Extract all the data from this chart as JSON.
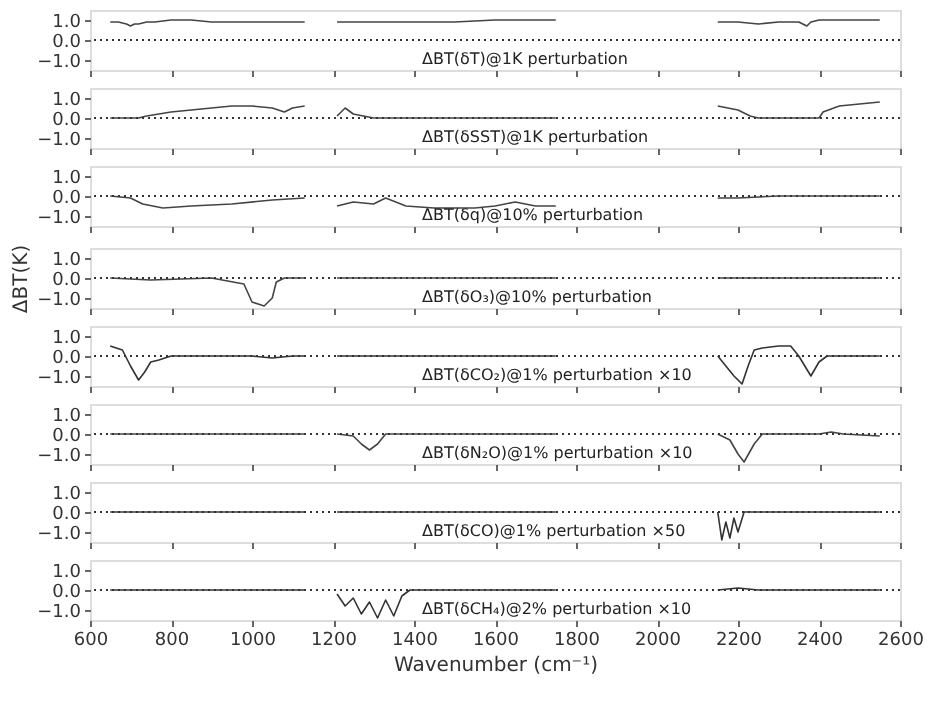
{
  "chart_data": [
    {
      "type": "line",
      "annotations": [
        "ΔBT(δT)@1K perturbation"
      ],
      "series": [
        {
          "color": "#444444",
          "x": [
            650,
            670,
            690,
            700,
            710,
            720,
            740,
            760,
            800,
            850,
            900,
            950,
            1000,
            1050,
            1100,
            1130
          ],
          "values": [
            0.9,
            0.9,
            0.8,
            0.7,
            0.8,
            0.8,
            0.9,
            0.9,
            1.0,
            1.0,
            0.9,
            0.9,
            0.9,
            0.9,
            0.9,
            0.9
          ]
        },
        {
          "color": "#444444",
          "x": [
            1210,
            1250,
            1300,
            1400,
            1500,
            1600,
            1700,
            1750
          ],
          "values": [
            0.9,
            0.9,
            0.9,
            0.9,
            0.9,
            1.0,
            1.0,
            1.0
          ]
        },
        {
          "color": "#444444",
          "x": [
            2150,
            2200,
            2250,
            2300,
            2330,
            2350,
            2370,
            2380,
            2400,
            2450,
            2500,
            2550
          ],
          "values": [
            0.9,
            0.9,
            0.8,
            0.9,
            0.9,
            0.9,
            0.7,
            0.9,
            1.0,
            1.0,
            1.0,
            1.0
          ]
        }
      ],
      "xlim": [
        600,
        2600
      ],
      "xticks": [
        {
          "value": 600,
          "label": null
        },
        {
          "value": 800,
          "label": null
        },
        {
          "value": 1000,
          "label": null
        },
        {
          "value": 1200,
          "label": null
        },
        {
          "value": 1400,
          "label": null
        },
        {
          "value": 1600,
          "label": null
        },
        {
          "value": 1800,
          "label": null
        },
        {
          "value": 2000,
          "label": null
        },
        {
          "value": 2200,
          "label": null
        },
        {
          "value": 2400,
          "label": null
        },
        {
          "value": 2600,
          "label": null
        }
      ],
      "ylim": [
        -1.5,
        1.5
      ],
      "yticks": [
        {
          "value": -1,
          "label": "−1.0"
        },
        {
          "value": 0,
          "label": "0.0"
        },
        {
          "value": 1,
          "label": "1.0"
        }
      ],
      "ref_lines": [
        {
          "axis": "y",
          "value": 0,
          "line_style": "dotted"
        }
      ],
      "tick_labels": "y"
    },
    {
      "type": "line",
      "annotations": [
        "ΔBT(δSST)@1K perturbation"
      ],
      "series": [
        {
          "color": "#444444",
          "x": [
            650,
            700,
            720,
            740,
            800,
            850,
            900,
            950,
            1000,
            1050,
            1080,
            1100,
            1130
          ],
          "values": [
            0,
            0,
            0,
            0.1,
            0.3,
            0.4,
            0.5,
            0.6,
            0.6,
            0.5,
            0.3,
            0.5,
            0.6
          ]
        },
        {
          "color": "#444444",
          "x": [
            1210,
            1230,
            1250,
            1300,
            1750
          ],
          "values": [
            0.1,
            0.5,
            0.2,
            0,
            0
          ]
        },
        {
          "color": "#444444",
          "x": [
            2150,
            2200,
            2230,
            2250,
            2400,
            2410,
            2450,
            2500,
            2550
          ],
          "values": [
            0.6,
            0.4,
            0.1,
            0,
            0,
            0.3,
            0.6,
            0.7,
            0.8
          ]
        }
      ],
      "xlim": [
        600,
        2600
      ],
      "xticks": [
        {
          "value": 600,
          "label": null
        },
        {
          "value": 800,
          "label": null
        },
        {
          "value": 1000,
          "label": null
        },
        {
          "value": 1200,
          "label": null
        },
        {
          "value": 1400,
          "label": null
        },
        {
          "value": 1600,
          "label": null
        },
        {
          "value": 1800,
          "label": null
        },
        {
          "value": 2000,
          "label": null
        },
        {
          "value": 2200,
          "label": null
        },
        {
          "value": 2400,
          "label": null
        },
        {
          "value": 2600,
          "label": null
        }
      ],
      "ylim": [
        -1.5,
        1.5
      ],
      "yticks": [
        {
          "value": -1,
          "label": "−1.0"
        },
        {
          "value": 0,
          "label": "0.0"
        },
        {
          "value": 1,
          "label": "1.0"
        }
      ],
      "ref_lines": [
        {
          "axis": "y",
          "value": 0,
          "line_style": "dotted"
        }
      ],
      "tick_labels": "y"
    },
    {
      "type": "line",
      "annotations": [
        "ΔBT(δq)@10% perturbation"
      ],
      "series": [
        {
          "color": "#444444",
          "x": [
            650,
            700,
            730,
            780,
            850,
            950,
            1050,
            1130
          ],
          "values": [
            0,
            -0.1,
            -0.4,
            -0.6,
            -0.5,
            -0.4,
            -0.2,
            -0.1
          ]
        },
        {
          "color": "#444444",
          "x": [
            1210,
            1250,
            1300,
            1330,
            1380,
            1450,
            1550,
            1600,
            1650,
            1700,
            1750
          ],
          "values": [
            -0.5,
            -0.3,
            -0.4,
            -0.1,
            -0.5,
            -0.6,
            -0.6,
            -0.5,
            -0.3,
            -0.5,
            -0.5
          ]
        },
        {
          "color": "#444444",
          "x": [
            2150,
            2200,
            2300,
            2550
          ],
          "values": [
            -0.1,
            -0.1,
            0,
            0
          ]
        }
      ],
      "xlim": [
        600,
        2600
      ],
      "xticks": [
        {
          "value": 600,
          "label": null
        },
        {
          "value": 800,
          "label": null
        },
        {
          "value": 1000,
          "label": null
        },
        {
          "value": 1200,
          "label": null
        },
        {
          "value": 1400,
          "label": null
        },
        {
          "value": 1600,
          "label": null
        },
        {
          "value": 1800,
          "label": null
        },
        {
          "value": 2000,
          "label": null
        },
        {
          "value": 2200,
          "label": null
        },
        {
          "value": 2400,
          "label": null
        },
        {
          "value": 2600,
          "label": null
        }
      ],
      "ylim": [
        -1.5,
        1.5
      ],
      "yticks": [
        {
          "value": -1,
          "label": "−1.0"
        },
        {
          "value": 0,
          "label": "0.0"
        },
        {
          "value": 1,
          "label": "1.0"
        }
      ],
      "ref_lines": [
        {
          "axis": "y",
          "value": 0,
          "line_style": "dotted"
        }
      ],
      "tick_labels": "y"
    },
    {
      "type": "line",
      "ylabel": "ΔBT(K)",
      "annotations": [
        "ΔBT(δO₃)@10% perturbation"
      ],
      "series": [
        {
          "color": "#444444",
          "x": [
            650,
            750,
            900,
            980,
            1000,
            1030,
            1050,
            1060,
            1080,
            1130
          ],
          "values": [
            0,
            -0.1,
            0,
            -0.3,
            -1.2,
            -1.4,
            -1.0,
            -0.2,
            0,
            0
          ]
        },
        {
          "color": "#444444",
          "x": [
            1210,
            1750
          ],
          "values": [
            0,
            0
          ]
        },
        {
          "color": "#444444",
          "x": [
            2150,
            2550
          ],
          "values": [
            0,
            0
          ]
        }
      ],
      "xlim": [
        600,
        2600
      ],
      "xticks": [
        {
          "value": 600,
          "label": null
        },
        {
          "value": 800,
          "label": null
        },
        {
          "value": 1000,
          "label": null
        },
        {
          "value": 1200,
          "label": null
        },
        {
          "value": 1400,
          "label": null
        },
        {
          "value": 1600,
          "label": null
        },
        {
          "value": 1800,
          "label": null
        },
        {
          "value": 2000,
          "label": null
        },
        {
          "value": 2200,
          "label": null
        },
        {
          "value": 2400,
          "label": null
        },
        {
          "value": 2600,
          "label": null
        }
      ],
      "ylim": [
        -1.5,
        1.5
      ],
      "yticks": [
        {
          "value": -1,
          "label": "−1.0"
        },
        {
          "value": 0,
          "label": "0.0"
        },
        {
          "value": 1,
          "label": "1.0"
        }
      ],
      "ref_lines": [
        {
          "axis": "y",
          "value": 0,
          "line_style": "dotted"
        }
      ],
      "tick_labels": "y"
    },
    {
      "type": "line",
      "annotations": [
        "ΔBT(δCO₂)@1% perturbation ×10"
      ],
      "series": [
        {
          "color": "#333333",
          "x": [
            650,
            680,
            700,
            720,
            735,
            750,
            770,
            800,
            1000,
            1050,
            1100,
            1130
          ],
          "values": [
            0.5,
            0.3,
            -0.5,
            -1.2,
            -0.8,
            -0.3,
            -0.2,
            0,
            0,
            -0.1,
            0,
            0
          ]
        },
        {
          "color": "#333333",
          "x": [
            1210,
            1750
          ],
          "values": [
            0,
            0
          ]
        },
        {
          "color": "#333333",
          "x": [
            2150,
            2170,
            2190,
            2210,
            2225,
            2240,
            2260,
            2300,
            2330,
            2350,
            2380,
            2400,
            2420,
            2550
          ],
          "values": [
            0,
            -0.5,
            -1.0,
            -1.4,
            -0.5,
            0.3,
            0.4,
            0.5,
            0.5,
            0,
            -1.0,
            -0.3,
            0,
            0
          ]
        }
      ],
      "xlim": [
        600,
        2600
      ],
      "xticks": [
        {
          "value": 600,
          "label": null
        },
        {
          "value": 800,
          "label": null
        },
        {
          "value": 1000,
          "label": null
        },
        {
          "value": 1200,
          "label": null
        },
        {
          "value": 1400,
          "label": null
        },
        {
          "value": 1600,
          "label": null
        },
        {
          "value": 1800,
          "label": null
        },
        {
          "value": 2000,
          "label": null
        },
        {
          "value": 2200,
          "label": null
        },
        {
          "value": 2400,
          "label": null
        },
        {
          "value": 2600,
          "label": null
        }
      ],
      "ylim": [
        -1.5,
        1.5
      ],
      "yticks": [
        {
          "value": -1,
          "label": "−1.0"
        },
        {
          "value": 0,
          "label": "0.0"
        },
        {
          "value": 1,
          "label": "1.0"
        }
      ],
      "ref_lines": [
        {
          "axis": "y",
          "value": 0,
          "line_style": "dotted"
        }
      ],
      "tick_labels": "y"
    },
    {
      "type": "line",
      "annotations": [
        "ΔBT(δN₂O)@1% perturbation ×10"
      ],
      "series": [
        {
          "color": "#444444",
          "x": [
            650,
            1130
          ],
          "values": [
            0,
            0
          ]
        },
        {
          "color": "#444444",
          "x": [
            1210,
            1250,
            1270,
            1290,
            1310,
            1330,
            1750
          ],
          "values": [
            0,
            -0.1,
            -0.5,
            -0.8,
            -0.5,
            0,
            0
          ]
        },
        {
          "color": "#444444",
          "x": [
            2150,
            2180,
            2200,
            2215,
            2240,
            2260,
            2400,
            2430,
            2460,
            2550
          ],
          "values": [
            0,
            -0.3,
            -1.0,
            -1.4,
            -0.5,
            0,
            0,
            0.1,
            0,
            -0.1
          ]
        }
      ],
      "xlim": [
        600,
        2600
      ],
      "xticks": [
        {
          "value": 600,
          "label": null
        },
        {
          "value": 800,
          "label": null
        },
        {
          "value": 1000,
          "label": null
        },
        {
          "value": 1200,
          "label": null
        },
        {
          "value": 1400,
          "label": null
        },
        {
          "value": 1600,
          "label": null
        },
        {
          "value": 1800,
          "label": null
        },
        {
          "value": 2000,
          "label": null
        },
        {
          "value": 2200,
          "label": null
        },
        {
          "value": 2400,
          "label": null
        },
        {
          "value": 2600,
          "label": null
        }
      ],
      "ylim": [
        -1.5,
        1.5
      ],
      "yticks": [
        {
          "value": -1,
          "label": "−1.0"
        },
        {
          "value": 0,
          "label": "0.0"
        },
        {
          "value": 1,
          "label": "1.0"
        }
      ],
      "ref_lines": [
        {
          "axis": "y",
          "value": 0,
          "line_style": "dotted"
        }
      ],
      "tick_labels": "y"
    },
    {
      "type": "line",
      "annotations": [
        "ΔBT(δCO)@1% perturbation ×50"
      ],
      "series": [
        {
          "color": "#333333",
          "x": [
            650,
            1130
          ],
          "values": [
            0,
            0
          ]
        },
        {
          "color": "#333333",
          "x": [
            1210,
            1750
          ],
          "values": [
            0,
            0
          ]
        },
        {
          "color": "#333333",
          "x": [
            2150,
            2160,
            2170,
            2180,
            2190,
            2200,
            2215,
            2550
          ],
          "values": [
            0,
            -1.4,
            -0.5,
            -1.3,
            -0.3,
            -1.0,
            0,
            0
          ]
        }
      ],
      "xlim": [
        600,
        2600
      ],
      "xticks": [
        {
          "value": 600,
          "label": null
        },
        {
          "value": 800,
          "label": null
        },
        {
          "value": 1000,
          "label": null
        },
        {
          "value": 1200,
          "label": null
        },
        {
          "value": 1400,
          "label": null
        },
        {
          "value": 1600,
          "label": null
        },
        {
          "value": 1800,
          "label": null
        },
        {
          "value": 2000,
          "label": null
        },
        {
          "value": 2200,
          "label": null
        },
        {
          "value": 2400,
          "label": null
        },
        {
          "value": 2600,
          "label": null
        }
      ],
      "ylim": [
        -1.5,
        1.5
      ],
      "yticks": [
        {
          "value": -1,
          "label": "−1.0"
        },
        {
          "value": 0,
          "label": "0.0"
        },
        {
          "value": 1,
          "label": "1.0"
        }
      ],
      "ref_lines": [
        {
          "axis": "y",
          "value": 0,
          "line_style": "dotted"
        }
      ],
      "tick_labels": "y"
    },
    {
      "type": "line",
      "xlabel": "Wavenumber (cm⁻¹)",
      "annotations": [
        "ΔBT(δCH₄)@2% perturbation ×10"
      ],
      "series": [
        {
          "color": "#333333",
          "x": [
            650,
            1130
          ],
          "values": [
            0,
            0
          ]
        },
        {
          "color": "#333333",
          "x": [
            1210,
            1230,
            1250,
            1270,
            1290,
            1310,
            1330,
            1350,
            1370,
            1390,
            1750
          ],
          "values": [
            -0.2,
            -0.8,
            -0.4,
            -1.2,
            -0.6,
            -1.4,
            -0.5,
            -1.3,
            -0.3,
            0,
            0
          ]
        },
        {
          "color": "#333333",
          "x": [
            2150,
            2200,
            2250,
            2550
          ],
          "values": [
            0,
            0.1,
            0,
            0
          ]
        }
      ],
      "xlim": [
        600,
        2600
      ],
      "xticks": [
        600,
        800,
        1000,
        1200,
        1400,
        1600,
        1800,
        2000,
        2200,
        2400,
        2600
      ],
      "ylim": [
        -1.5,
        1.5
      ],
      "yticks": [
        {
          "value": -1,
          "label": "−1.0"
        },
        {
          "value": 0,
          "label": "0.0"
        },
        {
          "value": 1,
          "label": "1.0"
        }
      ],
      "ref_lines": [
        {
          "axis": "y",
          "value": 0,
          "line_style": "dotted"
        }
      ]
    }
  ]
}
